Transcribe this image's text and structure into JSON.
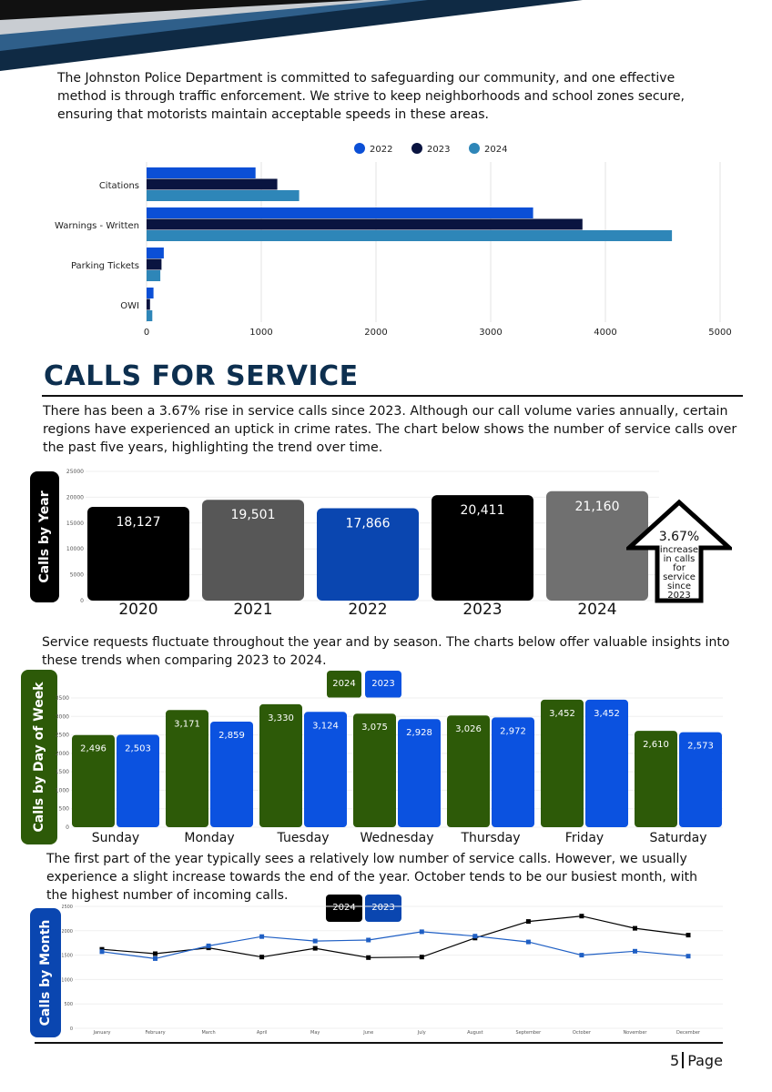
{
  "header": {
    "colors": {
      "navy": "#0f2a44",
      "steel": "#2f5f8a",
      "silver": "#c9cdd2",
      "black": "#111111"
    }
  },
  "intro": "The Johnston Police Department is committed to safeguarding our community, and one effective method is through traffic enforcement. We strive to keep neighborhoods and school zones secure, ensuring that motorists maintain acceptable speeds in these areas.",
  "section_title": "CALLS FOR SERVICE",
  "calls_intro": "There has been a 3.67% rise in service calls since 2023. Although our call volume varies annually, certain regions have experienced an uptick in crime rates. The chart below shows the number of service calls over the past five years, highlighting the trend over time.",
  "tabs": {
    "year": "Calls by Year",
    "week": "Calls by Day of Week",
    "month": "Calls by Month"
  },
  "increase": {
    "pct": "3.67%",
    "lines": [
      "increase",
      "in calls",
      "for",
      "service",
      "since",
      "2023"
    ]
  },
  "season_text": "Service requests fluctuate throughout the year and by season. The charts below offer valuable insights into these trends when comparing 2023 to 2024.",
  "month_text": "The first part of the year typically sees a relatively low number of service calls. However, we usually experience a slight increase towards the end of the year. October tends to be our busiest month, with the highest number of incoming calls.",
  "footer": {
    "page_num": "5",
    "page_word": "Page"
  },
  "chart_data": [
    {
      "type": "bar",
      "orientation": "horizontal",
      "title": "",
      "categories": [
        "Citations",
        "Warnings - Written",
        "Parking Tickets",
        "OWI"
      ],
      "series": [
        {
          "name": "2022",
          "color": "#0b4fd6",
          "values": [
            950,
            3370,
            150,
            60
          ]
        },
        {
          "name": "2023",
          "color": "#0a1440",
          "values": [
            1140,
            3800,
            130,
            30
          ]
        },
        {
          "name": "2024",
          "color": "#2e86b8",
          "values": [
            1330,
            4580,
            120,
            50
          ]
        }
      ],
      "xlim": [
        0,
        5000
      ],
      "xticks": [
        "0",
        "1000",
        "2000",
        "3000",
        "4000",
        "5000"
      ],
      "legend": "top-center",
      "grid": true
    },
    {
      "type": "bar",
      "title": "Calls by Year",
      "categories": [
        "2020",
        "2021",
        "2022",
        "2023",
        "2024"
      ],
      "values": [
        18127,
        19501,
        17866,
        20411,
        21160
      ],
      "labels": [
        "18,127",
        "19,501",
        "17,866",
        "20,411",
        "21,160"
      ],
      "colors": [
        "#000000",
        "#575757",
        "#0a46b0",
        "#000000",
        "#707070"
      ],
      "ylim": [
        0,
        25000
      ],
      "yticks": [
        "0",
        "5000",
        "10000",
        "15000",
        "20000",
        "25000"
      ]
    },
    {
      "type": "bar",
      "title": "Calls by Day of Week",
      "categories": [
        "Sunday",
        "Monday",
        "Tuesday",
        "Wednesday",
        "Thursday",
        "Friday",
        "Saturday"
      ],
      "series": [
        {
          "name": "2024",
          "color": "#2d5a08",
          "values": [
            2496,
            3171,
            3330,
            3075,
            3026,
            3452,
            2610
          ],
          "labels": [
            "2,496",
            "3,171",
            "3,330",
            "3,075",
            "3,026",
            "3,452",
            "2,610"
          ]
        },
        {
          "name": "2023",
          "color": "#0b52e0",
          "values": [
            2503,
            2859,
            3124,
            2928,
            2972,
            3452,
            2573
          ],
          "labels": [
            "2,503",
            "2,859",
            "3,124",
            "2,928",
            "2,972",
            "3,452",
            "2,573"
          ]
        }
      ],
      "ylim": [
        0,
        3500
      ],
      "yticks": [
        "0",
        "500",
        "1000",
        "1500",
        "2000",
        "2500",
        "3000",
        "3500"
      ],
      "legend": "top-center"
    },
    {
      "type": "line",
      "title": "Calls by Month",
      "categories": [
        "January",
        "February",
        "March",
        "April",
        "May",
        "June",
        "July",
        "August",
        "September",
        "October",
        "November",
        "December"
      ],
      "series": [
        {
          "name": "2024",
          "color": "#000000",
          "values": [
            1620,
            1530,
            1650,
            1460,
            1640,
            1450,
            1460,
            1850,
            2190,
            2300,
            2050,
            1910
          ]
        },
        {
          "name": "2023",
          "color": "#1f5fc4",
          "values": [
            1570,
            1430,
            1690,
            1880,
            1790,
            1810,
            1980,
            1890,
            1770,
            1500,
            1580,
            1480
          ]
        }
      ],
      "ylim": [
        0,
        2500
      ],
      "yticks": [
        "0",
        "500",
        "1000",
        "1500",
        "2000",
        "2500"
      ],
      "legend": "top-center"
    }
  ]
}
